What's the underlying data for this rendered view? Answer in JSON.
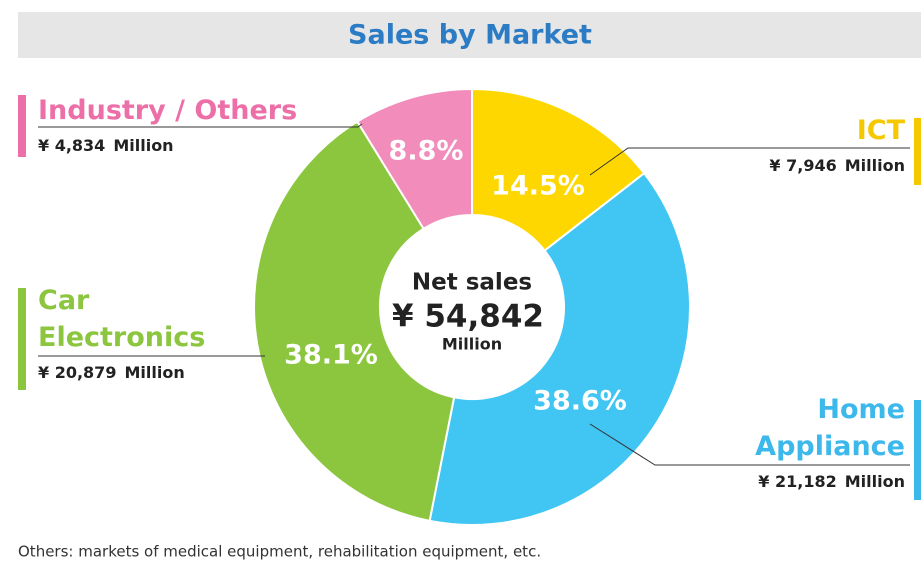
{
  "chart_data": {
    "type": "donut",
    "title": "Sales by Market",
    "categories": [
      "ICT",
      "Home Appliance",
      "Car Electronics",
      "Industry / Others"
    ],
    "values": [
      7946,
      21182,
      20879,
      4834
    ],
    "value_labels": [
      "¥ 7,946",
      "¥ 21,182",
      "¥ 20,879",
      "¥ 4,834"
    ],
    "percent_labels": [
      "14.5%",
      "38.6%",
      "38.1%",
      "8.8%"
    ],
    "unit": "Million",
    "colors": [
      "#ffd700",
      "#41c5f2",
      "#8cc63f",
      "#f18cbb"
    ],
    "label_colors": [
      "#f6c800",
      "#3db8ea",
      "#8cc63f",
      "#ec6fa8"
    ],
    "center_title": "Net sales",
    "total_label": "¥ 54,842",
    "total_unit": "Million",
    "footnote": "Others: markets of medical equipment, rehabilitation equipment, etc."
  }
}
